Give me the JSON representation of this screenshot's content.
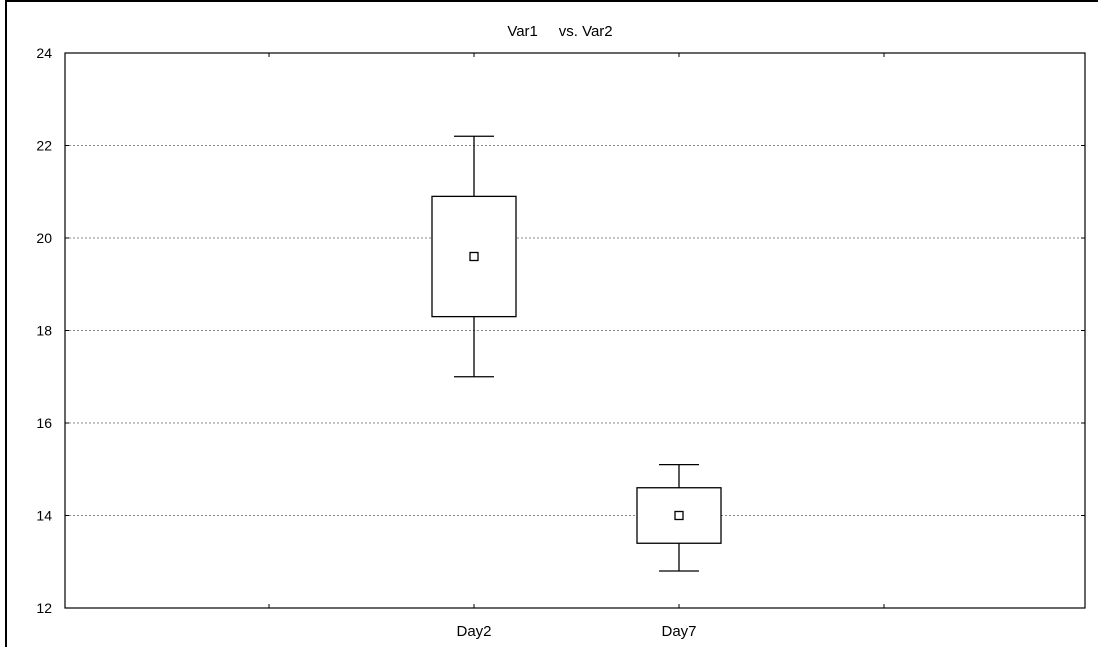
{
  "chart_data": {
    "type": "box",
    "title": "Var1     vs. Var2",
    "xlabel": "",
    "ylabel": "",
    "ylim": [
      12,
      24
    ],
    "yticks": [
      12,
      14,
      16,
      18,
      20,
      22,
      24
    ],
    "grid": true,
    "categories": [
      "Day2",
      "Day7"
    ],
    "boxes": [
      {
        "category": "Day2",
        "whisker_low": 17.0,
        "box_low": 18.3,
        "mean": 19.6,
        "box_high": 20.9,
        "whisker_high": 22.2
      },
      {
        "category": "Day7",
        "whisker_low": 12.8,
        "box_low": 13.4,
        "mean": 14.0,
        "box_high": 14.6,
        "whisker_high": 15.1
      }
    ]
  }
}
